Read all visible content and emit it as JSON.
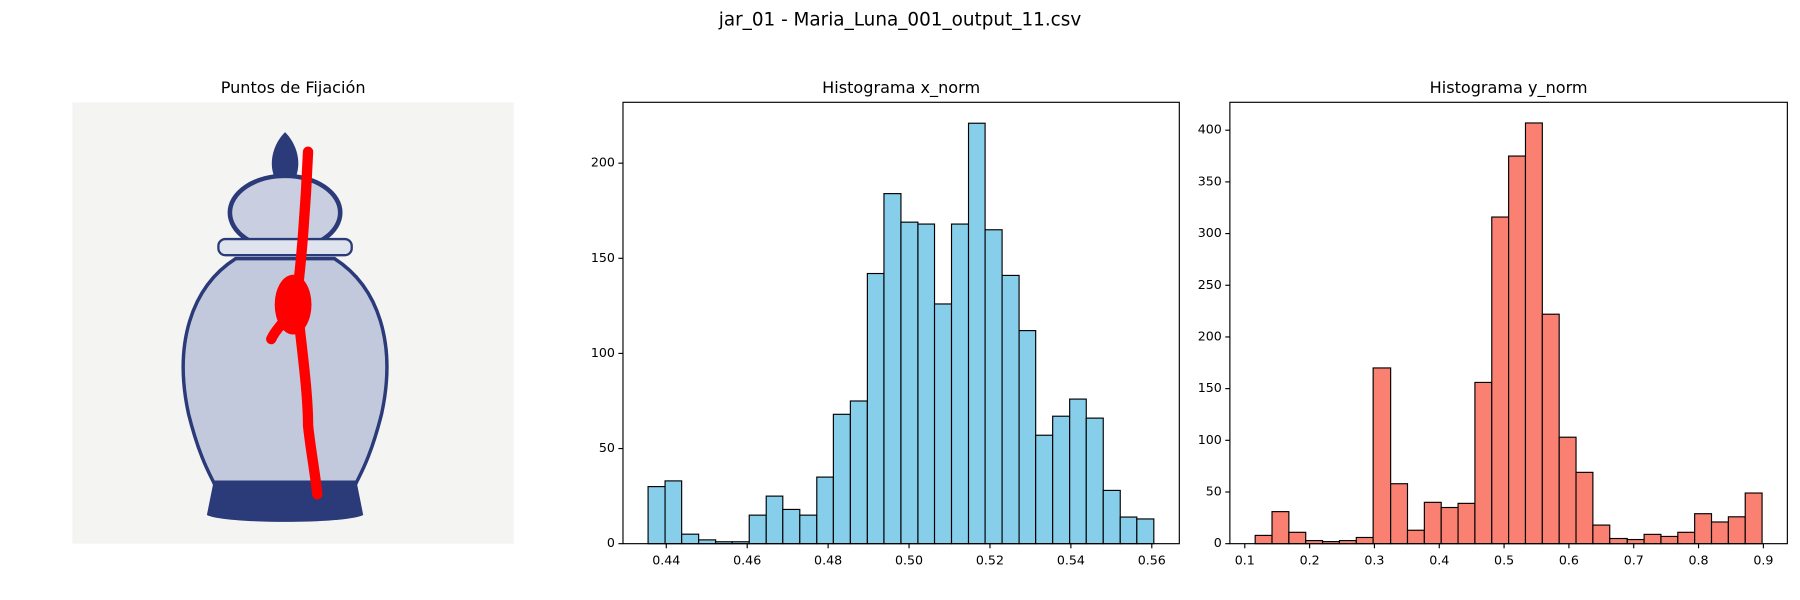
{
  "title": "jar_01 - Maria_Luna_001_output_11.csv",
  "chart_data": [
    {
      "type": "image",
      "title": "Puntos de Fijación"
    },
    {
      "type": "histogram",
      "title": "Histograma x_norm",
      "color": "#87ceeb",
      "edgecolor": "#000000",
      "bins": [
        0.4355,
        0.4397,
        0.4438,
        0.448,
        0.4522,
        0.4563,
        0.4605,
        0.4647,
        0.4688,
        0.473,
        0.4772,
        0.4813,
        0.4855,
        0.4897,
        0.4938,
        0.498,
        0.5022,
        0.5063,
        0.5105,
        0.5147,
        0.5188,
        0.523,
        0.5272,
        0.5313,
        0.5355,
        0.5397,
        0.5438,
        0.548,
        0.5522,
        0.5563,
        0.5605
      ],
      "values": [
        30,
        33,
        5,
        2,
        1,
        1,
        15,
        25,
        18,
        15,
        35,
        68,
        75,
        142,
        184,
        169,
        168,
        126,
        168,
        221,
        165,
        141,
        112,
        57,
        67,
        76,
        66,
        28,
        14,
        13
      ],
      "xlim": [
        0.4293,
        0.5668
      ],
      "ylim": [
        0,
        232
      ],
      "xticks": [
        0.44,
        0.46,
        0.48,
        {
          "value": 0.5,
          "label": "0.50"
        },
        0.52,
        0.54,
        0.56
      ],
      "yticks": [
        0,
        50,
        100,
        150,
        200
      ]
    },
    {
      "type": "histogram",
      "title": "Histograma y_norm",
      "color": "#fa8072",
      "edgecolor": "#000000",
      "bins": [
        0.116,
        0.142,
        0.168,
        0.194,
        0.22,
        0.246,
        0.272,
        0.298,
        0.325,
        0.351,
        0.377,
        0.403,
        0.429,
        0.455,
        0.481,
        0.507,
        0.533,
        0.559,
        0.585,
        0.611,
        0.637,
        0.663,
        0.69,
        0.716,
        0.742,
        0.768,
        0.794,
        0.82,
        0.846,
        0.872,
        0.898
      ],
      "values": [
        8,
        31,
        11,
        3,
        2,
        3,
        6,
        170,
        58,
        13,
        40,
        35,
        39,
        156,
        316,
        375,
        407,
        222,
        103,
        69,
        18,
        5,
        4,
        9,
        7,
        11,
        29,
        21,
        26,
        49
      ],
      "xlim": [
        0.077,
        0.937
      ],
      "ylim": [
        0,
        427
      ],
      "xticks": [
        0.1,
        0.2,
        0.3,
        0.4,
        0.5,
        0.6,
        0.7,
        0.8,
        0.9
      ],
      "yticks": [
        0,
        50,
        100,
        150,
        200,
        250,
        300,
        350,
        400
      ]
    }
  ]
}
